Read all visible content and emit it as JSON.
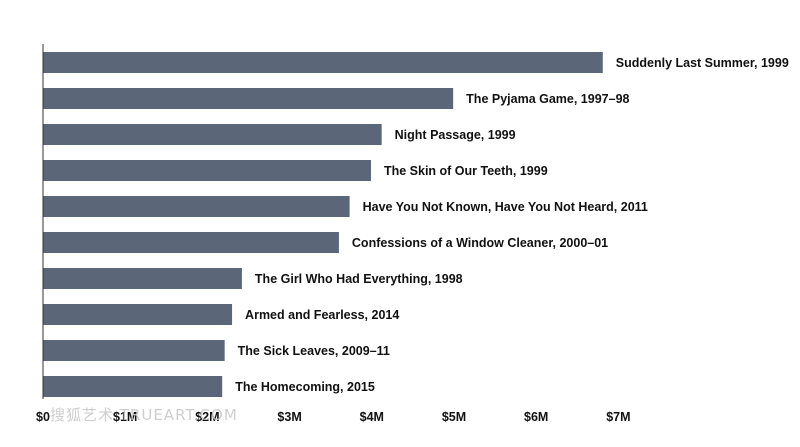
{
  "chart_data": {
    "type": "bar",
    "orientation": "horizontal",
    "categories": [
      "Suddenly Last Summer, 1999",
      "The Pyjama Game, 1997–98",
      "Night Passage, 1999",
      "The Skin of Our Teeth, 1999",
      "Have You Not Known, Have You Not Heard, 2011",
      "Confessions of a Window Cleaner, 2000–01",
      "The Girl Who Had Everything, 1998",
      "Armed and Fearless, 2014",
      "The Sick Leaves, 2009–11",
      "The Homecoming, 2015"
    ],
    "values": [
      6.81,
      4.99,
      4.12,
      3.99,
      3.73,
      3.6,
      2.42,
      2.3,
      2.21,
      2.18
    ],
    "xlim": [
      0,
      7.5
    ],
    "x_ticks": [
      0,
      1,
      2,
      3,
      4,
      5,
      6,
      7
    ],
    "x_tick_labels": [
      "$0",
      "$1M",
      "$2M",
      "$3M",
      "$4M",
      "$5M",
      "$6M",
      "$7M"
    ],
    "title": "",
    "xlabel": "",
    "ylabel": "",
    "bar_color": "#5b6779",
    "grid": false
  },
  "watermark": "搜狐艺术 TRUEART.COM"
}
